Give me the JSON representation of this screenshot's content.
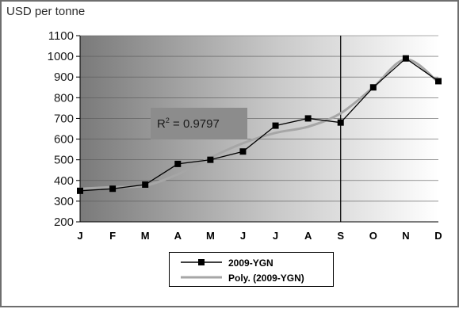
{
  "chart_data": {
    "type": "line",
    "ylabel": "USD per tonne",
    "categories": [
      "J",
      "F",
      "M",
      "A",
      "M",
      "J",
      "J",
      "A",
      "S",
      "O",
      "N",
      "D"
    ],
    "ylim": [
      200,
      1100
    ],
    "yticks": [
      200,
      300,
      400,
      500,
      600,
      700,
      800,
      900,
      1000,
      1100
    ],
    "grid": "horizontal",
    "series": [
      {
        "name": "2009-YGN",
        "marker": "square",
        "color": "#000000",
        "values": [
          350,
          360,
          380,
          480,
          500,
          540,
          665,
          700,
          680,
          850,
          990,
          880
        ]
      },
      {
        "name": "Poly. (2009-YGN)",
        "marker": "none",
        "color": "#a6a6a6",
        "values": [
          360,
          368,
          375,
          430,
          510,
          580,
          630,
          660,
          725,
          850,
          985,
          875
        ]
      }
    ],
    "annotation": {
      "r2_prefix": "R",
      "r2_sup": "2",
      "r2_rest": " = 0.9797"
    },
    "vline_at_category": "S",
    "legend_position": "bottom-center"
  }
}
